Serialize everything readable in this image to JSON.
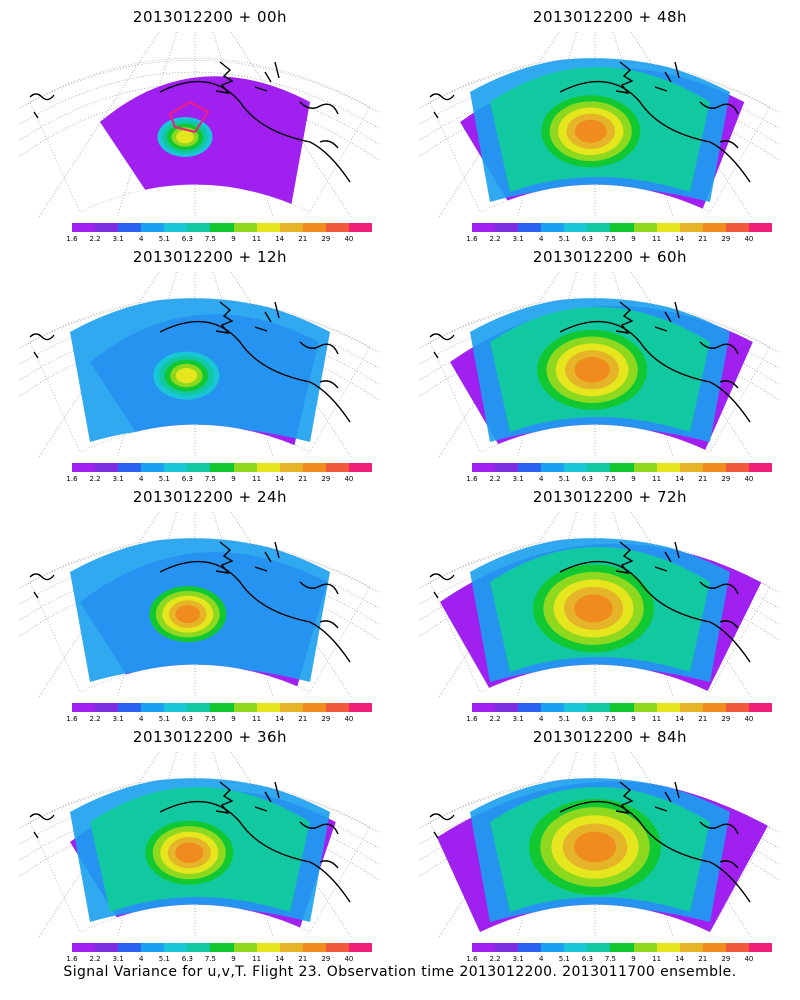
{
  "panels": [
    {
      "title": "2013012200  + 00h",
      "intensity": 0
    },
    {
      "title": "2013012200  + 48h",
      "intensity": 4
    },
    {
      "title": "2013012200  + 12h",
      "intensity": 1
    },
    {
      "title": "2013012200  + 60h",
      "intensity": 5
    },
    {
      "title": "2013012200  + 24h",
      "intensity": 2
    },
    {
      "title": "2013012200  + 72h",
      "intensity": 6
    },
    {
      "title": "2013012200  + 36h",
      "intensity": 3
    },
    {
      "title": "2013012200  + 84h",
      "intensity": 7
    }
  ],
  "colorbar": {
    "ticks": [
      "1.6",
      "2.2",
      "3.1",
      "4",
      "5.1",
      "6.3",
      "7.5",
      "9",
      "11",
      "14",
      "21",
      "29",
      "40"
    ],
    "colors": [
      "#a020f0",
      "#7a2ee0",
      "#2d5ff0",
      "#19a0f0",
      "#18c6d8",
      "#12c8a0",
      "#12c832",
      "#8ed820",
      "#e6e61e",
      "#e6b428",
      "#f08c1e",
      "#f05a3c",
      "#f01e78"
    ]
  },
  "footer": "Signal Variance for u,v,T. Flight 23. Observation time 2013012200. 2013011700 ensemble."
}
